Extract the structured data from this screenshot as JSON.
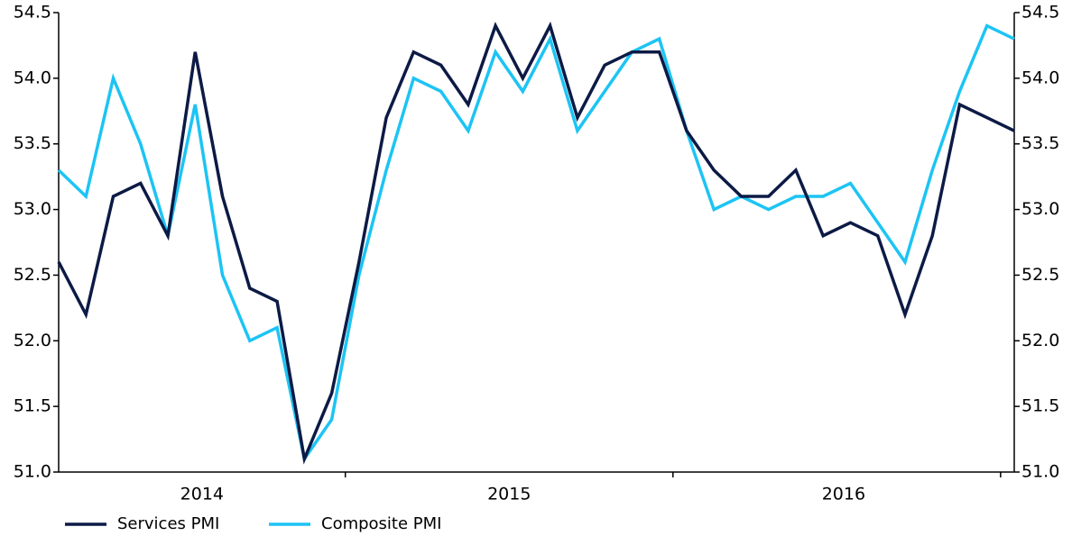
{
  "chart_data": {
    "type": "line",
    "categories": [
      "2014",
      null,
      null,
      null,
      null,
      null,
      null,
      null,
      null,
      null,
      null,
      "2015",
      null,
      null,
      null,
      null,
      null,
      null,
      null,
      null,
      null,
      null,
      null,
      "2016",
      null,
      null,
      null,
      null,
      null,
      null,
      null,
      null,
      null,
      null,
      null,
      null
    ],
    "series": [
      {
        "name": "Services PMI",
        "color": "#0c1a45",
        "values": [
          52.6,
          52.2,
          53.1,
          53.2,
          52.8,
          54.2,
          53.1,
          52.4,
          52.3,
          51.1,
          51.6,
          52.6,
          53.7,
          54.2,
          54.1,
          53.8,
          54.4,
          54.0,
          54.4,
          53.7,
          54.1,
          54.2,
          54.2,
          53.6,
          53.3,
          53.1,
          53.1,
          53.3,
          52.8,
          52.9,
          52.8,
          52.2,
          52.8,
          53.8,
          53.7,
          53.6
        ]
      },
      {
        "name": "Composite PMI",
        "color": "#1cc4f4",
        "values": [
          53.3,
          53.1,
          54.0,
          53.5,
          52.8,
          53.8,
          52.5,
          52.0,
          52.1,
          51.1,
          51.4,
          52.5,
          53.3,
          54.0,
          53.9,
          53.6,
          54.2,
          53.9,
          54.3,
          53.6,
          53.9,
          54.2,
          54.3,
          53.6,
          53.0,
          53.1,
          53.0,
          53.1,
          53.1,
          53.2,
          52.9,
          52.6,
          53.3,
          53.9,
          54.4,
          54.3
        ]
      }
    ],
    "ylim": [
      51,
      54.5
    ],
    "yticks": [
      {
        "value": 51,
        "label": "51.0"
      },
      51.5,
      {
        "value": 52,
        "label": "52.0"
      },
      52.5,
      {
        "value": 53,
        "label": "53.0"
      },
      53.5,
      {
        "value": 54,
        "label": "54.0"
      },
      54.5
    ],
    "y2lim": [
      51,
      54.5
    ],
    "y2ticks": [
      {
        "value": 51,
        "label": "51.0"
      },
      51.5,
      {
        "value": 52,
        "label": "52.0"
      },
      52.5,
      {
        "value": 53,
        "label": "53.0"
      },
      53.5,
      {
        "value": 54,
        "label": "54.0"
      },
      54.5
    ],
    "grid": false,
    "legend": "bottom-left"
  }
}
